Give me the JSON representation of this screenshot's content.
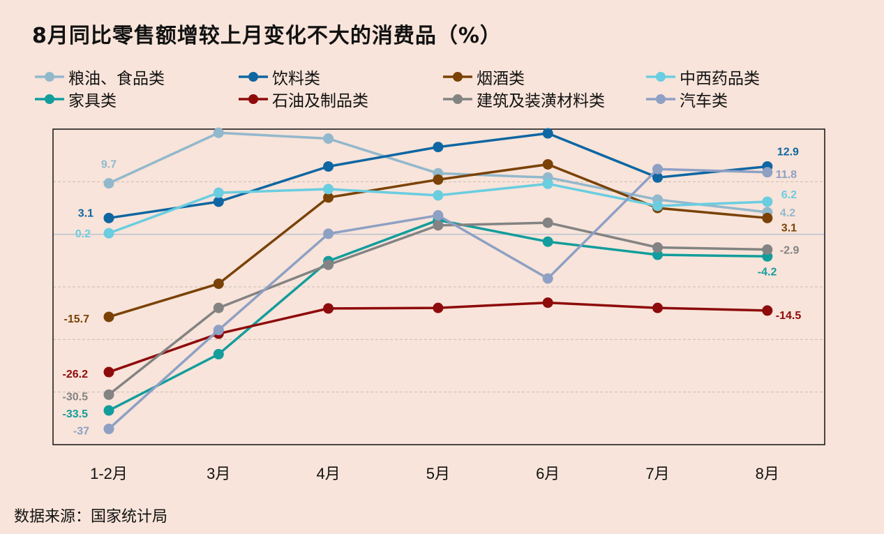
{
  "title": "8月同比零售额增较上月变化不大的消费品（%）",
  "source": "数据来源：国家统计局",
  "chart_data": {
    "type": "line",
    "title": "8月同比零售额增较上月变化不大的消费品（%）",
    "xlabel": "",
    "ylabel": "",
    "ylim": [
      -40,
      20
    ],
    "grid": true,
    "legend_position": "top",
    "categories": [
      "1-2月",
      "3月",
      "4月",
      "5月",
      "6月",
      "7月",
      "8月"
    ],
    "series": [
      {
        "name": "粮油、食品类",
        "color": "#92b8cc",
        "values": [
          9.7,
          19.3,
          18.2,
          11.6,
          10.8,
          6.6,
          4.2
        ],
        "labels": [
          "9.7",
          "",
          "",
          "",
          "",
          "",
          "4.2"
        ]
      },
      {
        "name": "饮料类",
        "color": "#0e66a2",
        "values": [
          3.1,
          6.2,
          12.9,
          16.6,
          19.2,
          10.8,
          12.9
        ],
        "labels": [
          "3.1",
          "",
          "",
          "",
          "",
          "",
          "12.9"
        ]
      },
      {
        "name": "烟酒类",
        "color": "#7a4206",
        "values": [
          -15.7,
          -9.4,
          7.0,
          10.4,
          13.3,
          5.0,
          3.1
        ],
        "labels": [
          "-15.7",
          "",
          "",
          "",
          "",
          "",
          "3.1"
        ]
      },
      {
        "name": "中西药品类",
        "color": "#6acde0",
        "values": [
          0.2,
          7.9,
          8.6,
          7.4,
          9.6,
          5.4,
          6.2
        ],
        "labels": [
          "0.2",
          "",
          "",
          "",
          "",
          "",
          "6.2"
        ]
      },
      {
        "name": "家具类",
        "color": "#139d9c",
        "values": [
          -33.5,
          -22.8,
          -5.1,
          2.7,
          -1.4,
          -3.9,
          -4.2
        ],
        "labels": [
          "-33.5",
          "",
          "",
          "",
          "",
          "",
          "-4.2"
        ]
      },
      {
        "name": "石油及制品类",
        "color": "#8e0b0b",
        "values": [
          -26.2,
          -18.9,
          -14.1,
          -14.0,
          -13.0,
          -14.0,
          -14.5
        ],
        "labels": [
          "-26.2",
          "",
          "",
          "",
          "",
          "",
          "-14.5"
        ]
      },
      {
        "name": "建筑及装潢材料类",
        "color": "#838383",
        "values": [
          -30.5,
          -14.0,
          -5.8,
          1.7,
          2.2,
          -2.5,
          -2.9
        ],
        "labels": [
          "-30.5",
          "",
          "",
          "",
          "",
          "",
          "-2.9"
        ]
      },
      {
        "name": "汽车类",
        "color": "#8ea0c4",
        "values": [
          -37.0,
          -18.2,
          0.1,
          3.6,
          -8.4,
          12.4,
          11.8
        ],
        "labels": [
          "-37",
          "",
          "",
          "",
          "",
          "",
          "11.8"
        ]
      }
    ]
  }
}
